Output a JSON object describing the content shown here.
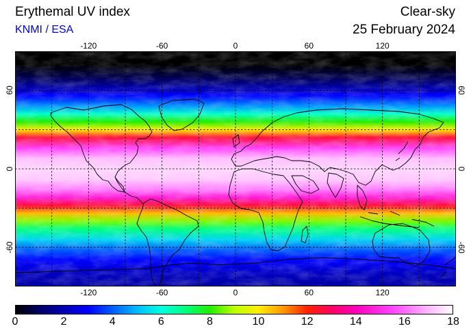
{
  "header": {
    "title": "Erythemal UV index",
    "subtitle": "KNMI / ESA",
    "mode": "Clear-sky",
    "date": "25 February 2024"
  },
  "colors": {
    "subtitle": "#0000dd",
    "frame": "#000000",
    "grid": "#000000"
  },
  "map": {
    "projection": "equirectangular",
    "lon_range": [
      -180,
      180
    ],
    "lat_range": [
      -90,
      90
    ],
    "grid": "dashed",
    "lon_ticks": [
      "-120",
      "-60",
      "0",
      "60",
      "120"
    ],
    "lon_tick_values": [
      -120,
      -60,
      0,
      60,
      120
    ],
    "lat_ticks": [
      "60",
      "0",
      "-60"
    ],
    "lat_tick_values": [
      60,
      0,
      -60
    ],
    "latitude_uv_profile": [
      {
        "lat": 90,
        "uv": 0
      },
      {
        "lat": 80,
        "uv": 0
      },
      {
        "lat": 72,
        "uv": 0.6
      },
      {
        "lat": 64,
        "uv": 1.6
      },
      {
        "lat": 56,
        "uv": 3.0
      },
      {
        "lat": 48,
        "uv": 4.6
      },
      {
        "lat": 42,
        "uv": 6.2
      },
      {
        "lat": 36,
        "uv": 8.0
      },
      {
        "lat": 30,
        "uv": 10.0
      },
      {
        "lat": 24,
        "uv": 12.6
      },
      {
        "lat": 16,
        "uv": 15.4
      },
      {
        "lat": 8,
        "uv": 17.0
      },
      {
        "lat": 0,
        "uv": 17.4
      },
      {
        "lat": -8,
        "uv": 17.2
      },
      {
        "lat": -16,
        "uv": 16.2
      },
      {
        "lat": -22,
        "uv": 14.6
      },
      {
        "lat": -28,
        "uv": 12.6
      },
      {
        "lat": -34,
        "uv": 10.6
      },
      {
        "lat": -40,
        "uv": 8.6
      },
      {
        "lat": -46,
        "uv": 7.0
      },
      {
        "lat": -54,
        "uv": 5.4
      },
      {
        "lat": -62,
        "uv": 4.0
      },
      {
        "lat": -70,
        "uv": 3.0
      },
      {
        "lat": -80,
        "uv": 2.2
      },
      {
        "lat": -90,
        "uv": 1.8
      }
    ]
  },
  "colorbar": {
    "min": 0,
    "max": 18,
    "labels": [
      "0",
      "2",
      "4",
      "6",
      "8",
      "10",
      "12",
      "14",
      "16",
      "18"
    ],
    "label_values": [
      0,
      2,
      4,
      6,
      8,
      10,
      12,
      14,
      16,
      18
    ],
    "stops": [
      {
        "value": 0,
        "color": "#000000"
      },
      {
        "value": 1,
        "color": "#000066"
      },
      {
        "value": 3,
        "color": "#0000ff"
      },
      {
        "value": 5,
        "color": "#00bbff"
      },
      {
        "value": 6,
        "color": "#00ffdd"
      },
      {
        "value": 7,
        "color": "#00ff80"
      },
      {
        "value": 8,
        "color": "#22ee00"
      },
      {
        "value": 9,
        "color": "#bbff00"
      },
      {
        "value": 10,
        "color": "#ffee00"
      },
      {
        "value": 11,
        "color": "#ff9900"
      },
      {
        "value": 12,
        "color": "#ff2200"
      },
      {
        "value": 13,
        "color": "#ff0066"
      },
      {
        "value": 14,
        "color": "#ff00bb"
      },
      {
        "value": 15.5,
        "color": "#ff44ff"
      },
      {
        "value": 17,
        "color": "#ffbbff"
      },
      {
        "value": 18,
        "color": "#ffffff"
      }
    ]
  }
}
